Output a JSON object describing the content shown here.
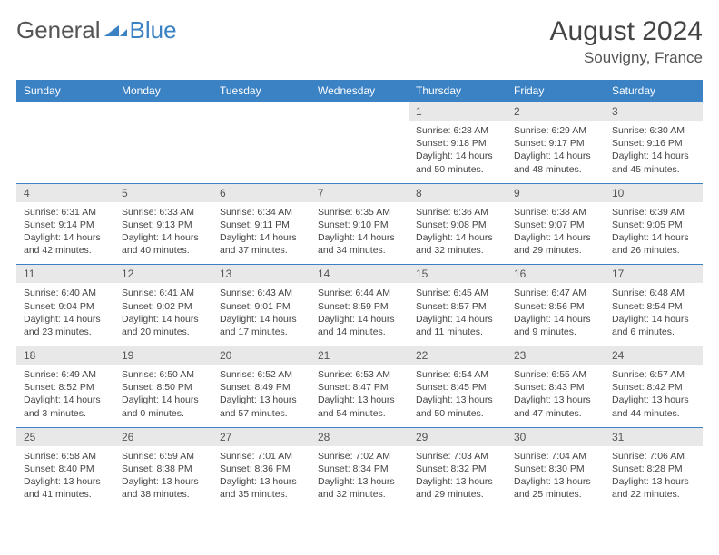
{
  "logo": {
    "part1": "General",
    "part2": "Blue"
  },
  "header": {
    "month_title": "August 2024",
    "location": "Souvigny, France"
  },
  "colors": {
    "accent": "#3b82c4",
    "daynum_bg": "#e8e8e8",
    "text": "#444444"
  },
  "day_headers": [
    "Sunday",
    "Monday",
    "Tuesday",
    "Wednesday",
    "Thursday",
    "Friday",
    "Saturday"
  ],
  "weeks": [
    [
      null,
      null,
      null,
      null,
      {
        "n": "1",
        "sr": "Sunrise: 6:28 AM",
        "ss": "Sunset: 9:18 PM",
        "dl": "Daylight: 14 hours and 50 minutes."
      },
      {
        "n": "2",
        "sr": "Sunrise: 6:29 AM",
        "ss": "Sunset: 9:17 PM",
        "dl": "Daylight: 14 hours and 48 minutes."
      },
      {
        "n": "3",
        "sr": "Sunrise: 6:30 AM",
        "ss": "Sunset: 9:16 PM",
        "dl": "Daylight: 14 hours and 45 minutes."
      }
    ],
    [
      {
        "n": "4",
        "sr": "Sunrise: 6:31 AM",
        "ss": "Sunset: 9:14 PM",
        "dl": "Daylight: 14 hours and 42 minutes."
      },
      {
        "n": "5",
        "sr": "Sunrise: 6:33 AM",
        "ss": "Sunset: 9:13 PM",
        "dl": "Daylight: 14 hours and 40 minutes."
      },
      {
        "n": "6",
        "sr": "Sunrise: 6:34 AM",
        "ss": "Sunset: 9:11 PM",
        "dl": "Daylight: 14 hours and 37 minutes."
      },
      {
        "n": "7",
        "sr": "Sunrise: 6:35 AM",
        "ss": "Sunset: 9:10 PM",
        "dl": "Daylight: 14 hours and 34 minutes."
      },
      {
        "n": "8",
        "sr": "Sunrise: 6:36 AM",
        "ss": "Sunset: 9:08 PM",
        "dl": "Daylight: 14 hours and 32 minutes."
      },
      {
        "n": "9",
        "sr": "Sunrise: 6:38 AM",
        "ss": "Sunset: 9:07 PM",
        "dl": "Daylight: 14 hours and 29 minutes."
      },
      {
        "n": "10",
        "sr": "Sunrise: 6:39 AM",
        "ss": "Sunset: 9:05 PM",
        "dl": "Daylight: 14 hours and 26 minutes."
      }
    ],
    [
      {
        "n": "11",
        "sr": "Sunrise: 6:40 AM",
        "ss": "Sunset: 9:04 PM",
        "dl": "Daylight: 14 hours and 23 minutes."
      },
      {
        "n": "12",
        "sr": "Sunrise: 6:41 AM",
        "ss": "Sunset: 9:02 PM",
        "dl": "Daylight: 14 hours and 20 minutes."
      },
      {
        "n": "13",
        "sr": "Sunrise: 6:43 AM",
        "ss": "Sunset: 9:01 PM",
        "dl": "Daylight: 14 hours and 17 minutes."
      },
      {
        "n": "14",
        "sr": "Sunrise: 6:44 AM",
        "ss": "Sunset: 8:59 PM",
        "dl": "Daylight: 14 hours and 14 minutes."
      },
      {
        "n": "15",
        "sr": "Sunrise: 6:45 AM",
        "ss": "Sunset: 8:57 PM",
        "dl": "Daylight: 14 hours and 11 minutes."
      },
      {
        "n": "16",
        "sr": "Sunrise: 6:47 AM",
        "ss": "Sunset: 8:56 PM",
        "dl": "Daylight: 14 hours and 9 minutes."
      },
      {
        "n": "17",
        "sr": "Sunrise: 6:48 AM",
        "ss": "Sunset: 8:54 PM",
        "dl": "Daylight: 14 hours and 6 minutes."
      }
    ],
    [
      {
        "n": "18",
        "sr": "Sunrise: 6:49 AM",
        "ss": "Sunset: 8:52 PM",
        "dl": "Daylight: 14 hours and 3 minutes."
      },
      {
        "n": "19",
        "sr": "Sunrise: 6:50 AM",
        "ss": "Sunset: 8:50 PM",
        "dl": "Daylight: 14 hours and 0 minutes."
      },
      {
        "n": "20",
        "sr": "Sunrise: 6:52 AM",
        "ss": "Sunset: 8:49 PM",
        "dl": "Daylight: 13 hours and 57 minutes."
      },
      {
        "n": "21",
        "sr": "Sunrise: 6:53 AM",
        "ss": "Sunset: 8:47 PM",
        "dl": "Daylight: 13 hours and 54 minutes."
      },
      {
        "n": "22",
        "sr": "Sunrise: 6:54 AM",
        "ss": "Sunset: 8:45 PM",
        "dl": "Daylight: 13 hours and 50 minutes."
      },
      {
        "n": "23",
        "sr": "Sunrise: 6:55 AM",
        "ss": "Sunset: 8:43 PM",
        "dl": "Daylight: 13 hours and 47 minutes."
      },
      {
        "n": "24",
        "sr": "Sunrise: 6:57 AM",
        "ss": "Sunset: 8:42 PM",
        "dl": "Daylight: 13 hours and 44 minutes."
      }
    ],
    [
      {
        "n": "25",
        "sr": "Sunrise: 6:58 AM",
        "ss": "Sunset: 8:40 PM",
        "dl": "Daylight: 13 hours and 41 minutes."
      },
      {
        "n": "26",
        "sr": "Sunrise: 6:59 AM",
        "ss": "Sunset: 8:38 PM",
        "dl": "Daylight: 13 hours and 38 minutes."
      },
      {
        "n": "27",
        "sr": "Sunrise: 7:01 AM",
        "ss": "Sunset: 8:36 PM",
        "dl": "Daylight: 13 hours and 35 minutes."
      },
      {
        "n": "28",
        "sr": "Sunrise: 7:02 AM",
        "ss": "Sunset: 8:34 PM",
        "dl": "Daylight: 13 hours and 32 minutes."
      },
      {
        "n": "29",
        "sr": "Sunrise: 7:03 AM",
        "ss": "Sunset: 8:32 PM",
        "dl": "Daylight: 13 hours and 29 minutes."
      },
      {
        "n": "30",
        "sr": "Sunrise: 7:04 AM",
        "ss": "Sunset: 8:30 PM",
        "dl": "Daylight: 13 hours and 25 minutes."
      },
      {
        "n": "31",
        "sr": "Sunrise: 7:06 AM",
        "ss": "Sunset: 8:28 PM",
        "dl": "Daylight: 13 hours and 22 minutes."
      }
    ]
  ]
}
